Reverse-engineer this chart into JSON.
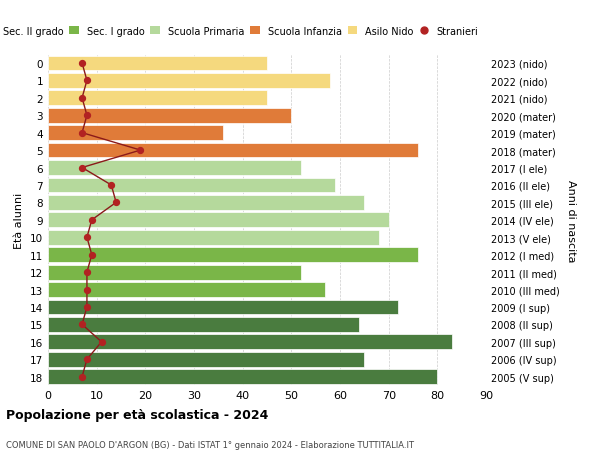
{
  "ages": [
    0,
    1,
    2,
    3,
    4,
    5,
    6,
    7,
    8,
    9,
    10,
    11,
    12,
    13,
    14,
    15,
    16,
    17,
    18
  ],
  "right_labels": [
    "2023 (nido)",
    "2022 (nido)",
    "2021 (nido)",
    "2020 (mater)",
    "2019 (mater)",
    "2018 (mater)",
    "2017 (I ele)",
    "2016 (II ele)",
    "2015 (III ele)",
    "2014 (IV ele)",
    "2013 (V ele)",
    "2012 (I med)",
    "2011 (II med)",
    "2010 (III med)",
    "2009 (I sup)",
    "2008 (II sup)",
    "2007 (III sup)",
    "2006 (IV sup)",
    "2005 (V sup)"
  ],
  "bar_values": [
    45,
    58,
    45,
    50,
    36,
    76,
    52,
    59,
    65,
    70,
    68,
    76,
    52,
    57,
    72,
    64,
    83,
    65,
    80
  ],
  "bar_colors": [
    "#f5d97e",
    "#f5d97e",
    "#f5d97e",
    "#e07b39",
    "#e07b39",
    "#e07b39",
    "#b5d99c",
    "#b5d99c",
    "#b5d99c",
    "#b5d99c",
    "#b5d99c",
    "#7ab648",
    "#7ab648",
    "#7ab648",
    "#4a7c3f",
    "#4a7c3f",
    "#4a7c3f",
    "#4a7c3f",
    "#4a7c3f"
  ],
  "stranieri_values": [
    7,
    8,
    7,
    8,
    7,
    19,
    7,
    13,
    14,
    9,
    8,
    9,
    8,
    8,
    8,
    7,
    11,
    8,
    7
  ],
  "title": "Popolazione per età scolastica - 2024",
  "subtitle": "COMUNE DI SAN PAOLO D'ARGON (BG) - Dati ISTAT 1° gennaio 2024 - Elaborazione TUTTITALIA.IT",
  "ylabel_left": "Età alunni",
  "ylabel_right": "Anni di nascita",
  "xlim": [
    0,
    90
  ],
  "legend_labels": [
    "Sec. II grado",
    "Sec. I grado",
    "Scuola Primaria",
    "Scuola Infanzia",
    "Asilo Nido",
    "Stranieri"
  ],
  "legend_colors": [
    "#4a7c3f",
    "#7ab648",
    "#b5d99c",
    "#e07b39",
    "#f5d97e",
    "#b22222"
  ],
  "background_color": "#ffffff",
  "grid_color": "#cccccc"
}
